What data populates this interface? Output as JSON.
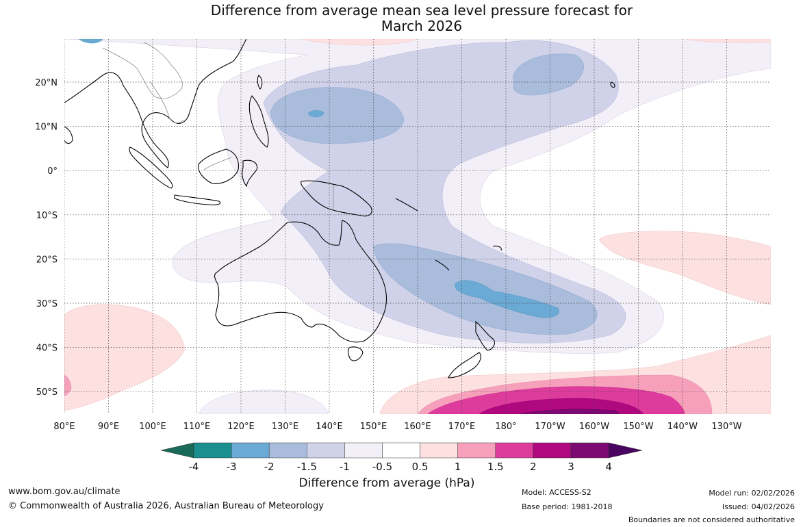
{
  "title": {
    "line1": "Difference from average mean sea level pressure forecast for",
    "line2": "March 2026"
  },
  "axes": {
    "lon_labels": [
      "80°E",
      "90°E",
      "100°E",
      "110°E",
      "120°E",
      "130°E",
      "140°E",
      "150°E",
      "160°E",
      "170°E",
      "180°",
      "170°W",
      "160°W",
      "150°W",
      "140°W",
      "130°W"
    ],
    "lat_labels": [
      "20°N",
      "10°N",
      "0°",
      "10°S",
      "20°S",
      "30°S",
      "40°S",
      "50°S"
    ]
  },
  "colorbar": {
    "ticks": [
      "-4",
      "-3",
      "-2",
      "-1.5",
      "-1",
      "-0.5",
      "0.5",
      "1",
      "1.5",
      "2",
      "3",
      "4"
    ],
    "colors": [
      "#1a8f8f",
      "#6aaad4",
      "#a9bcdc",
      "#cfd2e8",
      "#f3eff8",
      "#ffffff",
      "#fde0e0",
      "#f6a0bc",
      "#de3c9d",
      "#b0087f",
      "#7c0a72"
    ],
    "low_extend_color": "#1a6a5a",
    "high_extend_color": "#4a0560",
    "label": "Difference from average (hPa)"
  },
  "footer": {
    "website": "www.bom.gov.au/climate",
    "copyright": "© Commonwealth of Australia 2026, Australian Bureau of Meteorology",
    "model": "Model: ACCESS-S2",
    "base_period": "Base period: 1981-2018",
    "model_run": "Model run: 02/02/2026",
    "issued": "Issued: 04/02/2026",
    "disclaimer": "Boundaries are not considered authoritative"
  }
}
